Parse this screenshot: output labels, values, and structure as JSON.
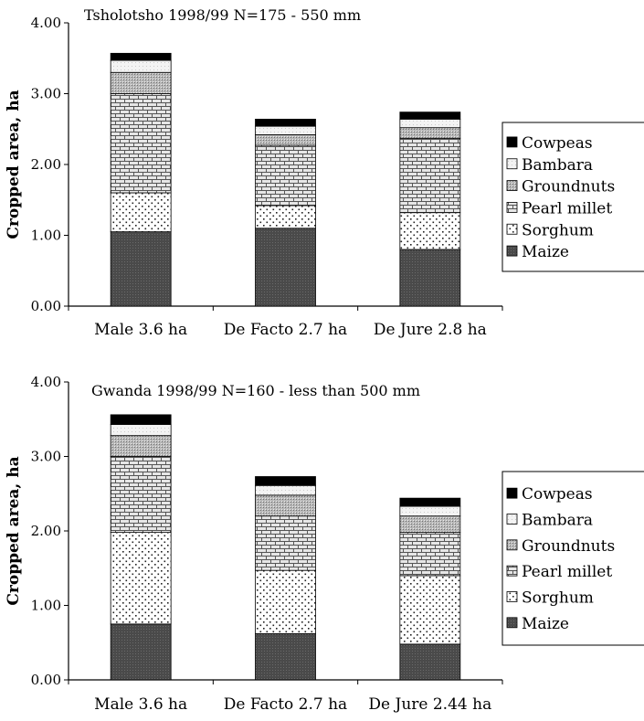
{
  "chart_data": [
    {
      "type": "bar",
      "stacked": true,
      "title": "Tsholotsho 1998/99 N=175 - 550 mm",
      "ylabel": "Cropped area, ha",
      "ylim": [
        0,
        4
      ],
      "yticks": [
        "0.00",
        "1.00",
        "2.00",
        "3.00",
        "4.00"
      ],
      "categories": [
        "Male 3.6 ha",
        "De Facto 2.7 ha",
        "De Jure 2.8 ha"
      ],
      "legend_position": "right",
      "series": [
        {
          "name": "Maize",
          "values": [
            1.05,
            1.1,
            0.8
          ]
        },
        {
          "name": "Sorghum",
          "values": [
            0.55,
            0.32,
            0.52
          ]
        },
        {
          "name": "Pearl millet",
          "values": [
            1.4,
            0.85,
            1.05
          ]
        },
        {
          "name": "Groundnuts",
          "values": [
            0.3,
            0.15,
            0.15
          ]
        },
        {
          "name": "Bambara",
          "values": [
            0.17,
            0.12,
            0.12
          ]
        },
        {
          "name": "Cowpeas",
          "values": [
            0.1,
            0.1,
            0.1
          ]
        }
      ]
    },
    {
      "type": "bar",
      "stacked": true,
      "title": "Gwanda 1998/99  N=160 - less than 500 mm",
      "ylabel": "Cropped area, ha",
      "ylim": [
        0,
        4
      ],
      "yticks": [
        "0.00",
        "1.00",
        "2.00",
        "3.00",
        "4.00"
      ],
      "categories": [
        "Male 3.6 ha",
        "De Facto 2.7 ha",
        "De Jure 2.44 ha"
      ],
      "legend_position": "right",
      "series": [
        {
          "name": "Maize",
          "values": [
            0.75,
            0.62,
            0.48
          ]
        },
        {
          "name": "Sorghum",
          "values": [
            1.23,
            0.85,
            0.92
          ]
        },
        {
          "name": "Pearl millet",
          "values": [
            1.02,
            0.73,
            0.58
          ]
        },
        {
          "name": "Groundnuts",
          "values": [
            0.28,
            0.28,
            0.22
          ]
        },
        {
          "name": "Bambara",
          "values": [
            0.15,
            0.13,
            0.13
          ]
        },
        {
          "name": "Cowpeas",
          "values": [
            0.13,
            0.12,
            0.11
          ]
        }
      ]
    }
  ]
}
